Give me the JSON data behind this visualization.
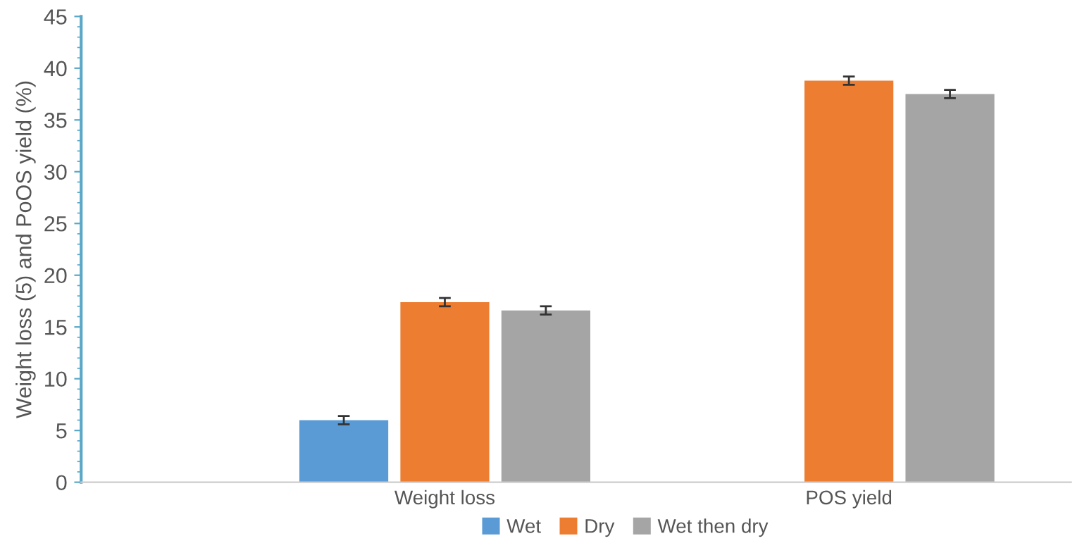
{
  "chart_data": {
    "type": "bar",
    "ylabel": "Weight loss (5) and PoOS yield (%)",
    "categories": [
      "Weight loss",
      "POS yield"
    ],
    "series": [
      {
        "name": "Wet",
        "color": "#5b9bd5",
        "values": [
          6.0,
          null
        ],
        "errors": [
          0.4,
          null
        ]
      },
      {
        "name": "Dry",
        "color": "#ed7d31",
        "values": [
          17.4,
          38.8
        ],
        "errors": [
          0.4,
          0.4
        ]
      },
      {
        "name": "Wet then dry",
        "color": "#a5a5a5",
        "values": [
          16.6,
          37.5
        ],
        "errors": [
          0.4,
          0.4
        ]
      }
    ],
    "ylim": [
      0,
      45
    ],
    "yticks": [
      0,
      5,
      10,
      15,
      20,
      25,
      30,
      35,
      40,
      45
    ],
    "grid": false,
    "legend": "bottom"
  }
}
